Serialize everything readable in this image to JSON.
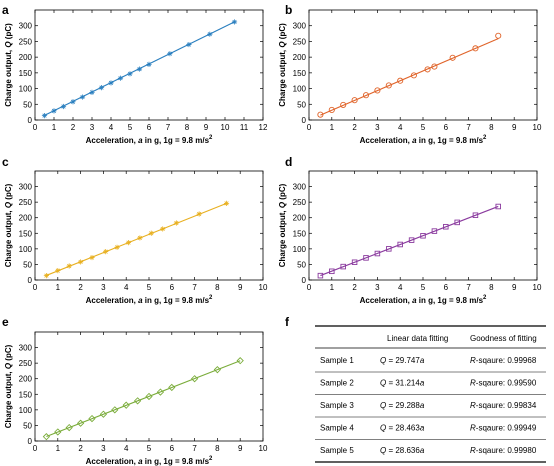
{
  "panel_letters": [
    "a",
    "b",
    "c",
    "d",
    "e",
    "f"
  ],
  "chart_data": [
    {
      "panel": "a",
      "type": "line",
      "color": "#2a7fbf",
      "marker": "star",
      "xlabel_parts": [
        "Acceleration, ",
        "a",
        " in g, 1g = 9.8 m/s",
        "2"
      ],
      "ylabel_parts": [
        "Charge output, ",
        "Q",
        " (pC)"
      ],
      "xlim": [
        0,
        12
      ],
      "ylim": [
        0,
        350
      ],
      "xticks": [
        "0",
        "1",
        "2",
        "3",
        "4",
        "5",
        "6",
        "7",
        "8",
        "9",
        "10",
        "11",
        "12"
      ],
      "yticks": [
        "0",
        "50",
        "100",
        "150",
        "200",
        "250",
        "300"
      ],
      "fit_slope": 29.747,
      "fit_x": [
        0.5,
        10.5
      ],
      "x": [
        0.5,
        1.0,
        1.5,
        2.0,
        2.5,
        3.0,
        3.5,
        4.0,
        4.5,
        5.0,
        5.5,
        6.0,
        7.1,
        8.1,
        9.2,
        10.5
      ],
      "y": [
        14,
        29,
        43,
        58,
        73,
        88,
        103,
        118,
        133,
        147,
        162,
        177,
        211,
        240,
        273,
        312
      ]
    },
    {
      "panel": "b",
      "type": "line",
      "color": "#e0642a",
      "marker": "circle",
      "xlabel_parts": [
        "Acceleration, ",
        "a",
        " in g, 1g = 9.8 m/s",
        "2"
      ],
      "ylabel_parts": [
        "Charge output, ",
        "Q",
        " (pC)"
      ],
      "xlim": [
        0,
        10
      ],
      "ylim": [
        0,
        350
      ],
      "xticks": [
        "0",
        "1",
        "2",
        "3",
        "4",
        "5",
        "6",
        "7",
        "8",
        "9",
        "10"
      ],
      "yticks": [
        "0",
        "50",
        "100",
        "150",
        "200",
        "250",
        "300"
      ],
      "fit_slope": 31.214,
      "fit_x": [
        0.5,
        8.3
      ],
      "x": [
        0.5,
        1.0,
        1.5,
        2.0,
        2.5,
        3.0,
        3.5,
        4.0,
        4.6,
        5.2,
        5.5,
        6.3,
        7.3,
        8.3
      ],
      "y": [
        17,
        32,
        48,
        63,
        79,
        94,
        110,
        125,
        142,
        161,
        170,
        198,
        228,
        268
      ]
    },
    {
      "panel": "c",
      "type": "line",
      "color": "#e8b020",
      "marker": "star",
      "xlabel_parts": [
        "Acceleration, ",
        "a",
        " in g, 1g = 9.8 m/s",
        "2"
      ],
      "ylabel_parts": [
        "Charge output, ",
        "Q",
        " (pC)"
      ],
      "xlim": [
        0,
        10
      ],
      "ylim": [
        0,
        350
      ],
      "xticks": [
        "0",
        "1",
        "2",
        "3",
        "4",
        "5",
        "6",
        "7",
        "8",
        "9",
        "10"
      ],
      "yticks": [
        "0",
        "50",
        "100",
        "150",
        "200",
        "250",
        "300"
      ],
      "fit_slope": 29.288,
      "fit_x": [
        0.5,
        8.4
      ],
      "x": [
        0.5,
        1.0,
        1.5,
        2.0,
        2.5,
        3.1,
        3.6,
        4.1,
        4.6,
        5.1,
        5.6,
        6.2,
        7.2,
        8.4
      ],
      "y": [
        14,
        30,
        45,
        58,
        72,
        91,
        105,
        120,
        135,
        150,
        164,
        183,
        212,
        246
      ]
    },
    {
      "panel": "d",
      "type": "line",
      "color": "#8a3a9e",
      "marker": "square",
      "xlabel_parts": [
        "Acceleration, ",
        "a",
        " in g, 1g = 9.8 m/s",
        "2"
      ],
      "ylabel_parts": [
        "Charge output, ",
        "Q",
        " (pC)"
      ],
      "xlim": [
        0,
        10
      ],
      "ylim": [
        0,
        350
      ],
      "xticks": [
        "0",
        "1",
        "2",
        "3",
        "4",
        "5",
        "6",
        "7",
        "8",
        "9",
        "10"
      ],
      "yticks": [
        "0",
        "50",
        "100",
        "150",
        "200",
        "250",
        "300"
      ],
      "fit_slope": 28.463,
      "fit_x": [
        0.5,
        8.3
      ],
      "x": [
        0.5,
        1.0,
        1.5,
        2.0,
        2.5,
        3.0,
        3.5,
        4.0,
        4.5,
        5.0,
        5.5,
        6.0,
        6.5,
        7.3,
        8.3
      ],
      "y": [
        14,
        28,
        43,
        57,
        71,
        85,
        100,
        114,
        128,
        142,
        157,
        171,
        185,
        208,
        236
      ]
    },
    {
      "panel": "e",
      "type": "line",
      "color": "#7aac3a",
      "marker": "diamond",
      "xlabel_parts": [
        "Acceleration, ",
        "a",
        " in g, 1g = 9.8 m/s",
        "2"
      ],
      "ylabel_parts": [
        "Charge output, ",
        "Q",
        " (pC)"
      ],
      "xlim": [
        0,
        10
      ],
      "ylim": [
        0,
        350
      ],
      "xticks": [
        "0",
        "1",
        "2",
        "3",
        "4",
        "5",
        "6",
        "7",
        "8",
        "9",
        "10"
      ],
      "yticks": [
        "0",
        "50",
        "100",
        "150",
        "200",
        "250",
        "300"
      ],
      "fit_slope": 28.636,
      "fit_x": [
        0.5,
        9.0
      ],
      "x": [
        0.5,
        1.0,
        1.5,
        2.0,
        2.5,
        3.0,
        3.5,
        4.0,
        4.5,
        5.0,
        5.5,
        6.0,
        7.0,
        8.0,
        9.0
      ],
      "y": [
        14,
        29,
        43,
        57,
        72,
        86,
        100,
        115,
        129,
        143,
        157,
        172,
        200,
        229,
        258
      ]
    }
  ],
  "fit_table": {
    "type": "table",
    "header": [
      "Linear data fitting",
      "Goodness of fitting"
    ],
    "rows": [
      {
        "sample": "Sample 1",
        "eq_prefix": "Q",
        "eq_mid": " = 29.747",
        "eq_var": "a",
        "r_prefix": "R",
        "r_rest": "-sqaure: 0.99968"
      },
      {
        "sample": "Sample 2",
        "eq_prefix": "Q",
        "eq_mid": " = 31.214",
        "eq_var": "a",
        "r_prefix": "R",
        "r_rest": "-sqaure: 0.99590"
      },
      {
        "sample": "Sample 3",
        "eq_prefix": "Q",
        "eq_mid": " = 29.288",
        "eq_var": "a",
        "r_prefix": "R",
        "r_rest": "-sqaure: 0.99834"
      },
      {
        "sample": "Sample 4",
        "eq_prefix": "Q",
        "eq_mid": " = 28.463",
        "eq_var": "a",
        "r_prefix": "R",
        "r_rest": "-sqaure: 0.99949"
      },
      {
        "sample": "Sample 5",
        "eq_prefix": "Q",
        "eq_mid": " = 28.636",
        "eq_var": "a",
        "r_prefix": "R",
        "r_rest": "-sqaure: 0.99980"
      }
    ]
  }
}
